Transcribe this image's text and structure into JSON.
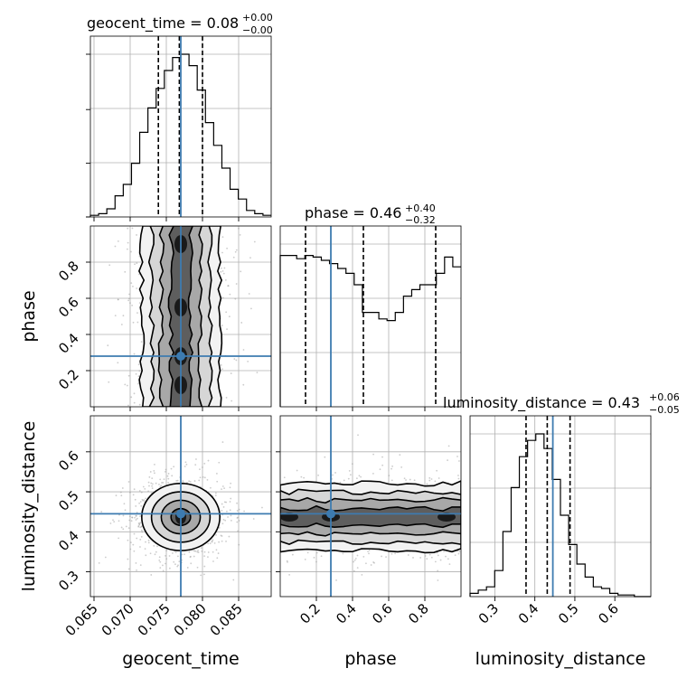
{
  "chart_data": {
    "type": "corner",
    "colors": {
      "truth": "#3d7bb0",
      "contour": "#000000",
      "scatter": "#a0a0a0"
    },
    "parameters": [
      {
        "name": "geocent_time",
        "axis_label": "geocent_time",
        "range": [
          0.0645,
          0.0895
        ],
        "ticks": [
          "0.065",
          "0.070",
          "0.075",
          "0.080",
          "0.085"
        ],
        "tick_values": [
          0.065,
          0.07,
          0.075,
          0.08,
          0.085
        ],
        "title_main": "geocent_time = 0.08",
        "title_sup": "+0.00",
        "title_sub": "−0.00",
        "truth": 0.077,
        "quantiles": [
          0.0739,
          0.0768,
          0.08
        ],
        "histogram": [
          0.01,
          0.02,
          0.05,
          0.13,
          0.2,
          0.33,
          0.52,
          0.67,
          0.79,
          0.9,
          0.98,
          1.0,
          0.93,
          0.78,
          0.58,
          0.44,
          0.3,
          0.17,
          0.11,
          0.04,
          0.02,
          0.01
        ]
      },
      {
        "name": "phase",
        "axis_label": "phase",
        "range": [
          0.0,
          1.0
        ],
        "ticks": [
          "0.2",
          "0.4",
          "0.6",
          "0.8"
        ],
        "tick_values": [
          0.2,
          0.4,
          0.6,
          0.8
        ],
        "title_main": "phase = 0.46",
        "title_sup": "+0.40",
        "title_sub": "−0.32",
        "truth": 0.28,
        "quantiles": [
          0.14,
          0.46,
          0.86
        ],
        "histogram": [
          0.93,
          0.93,
          0.91,
          0.93,
          0.92,
          0.9,
          0.88,
          0.85,
          0.82,
          0.75,
          0.58,
          0.58,
          0.54,
          0.53,
          0.58,
          0.68,
          0.72,
          0.75,
          0.75,
          0.82,
          0.92,
          0.86
        ]
      },
      {
        "name": "luminosity_distance",
        "axis_label": "luminosity_distance",
        "range": [
          0.238,
          0.69
        ],
        "ticks": [
          "0.3",
          "0.4",
          "0.5",
          "0.6"
        ],
        "tick_values": [
          0.3,
          0.4,
          0.5,
          0.6
        ],
        "title_main": "luminosity_distance = 0.43",
        "title_sup": "+0.06",
        "title_sub": "−0.05",
        "truth": 0.445,
        "quantiles": [
          0.378,
          0.431,
          0.488
        ],
        "histogram": [
          0.02,
          0.04,
          0.06,
          0.16,
          0.4,
          0.67,
          0.86,
          0.96,
          1.0,
          0.91,
          0.72,
          0.5,
          0.32,
          0.2,
          0.12,
          0.06,
          0.05,
          0.02,
          0.01,
          0.01,
          0.0,
          0.0
        ]
      }
    ],
    "panel_y_ticks": {
      "phase": [
        "0.2",
        "0.4",
        "0.6",
        "0.8"
      ],
      "luminosity_distance": [
        "0.3",
        "0.4",
        "0.5",
        "0.6"
      ]
    },
    "phase_y_range": [
      0.0,
      1.0
    ],
    "lum_y_range": [
      0.238,
      0.69
    ],
    "pair_densities": {
      "geocent_time__phase": {
        "x_center": 0.077,
        "x_sigma": 0.0027,
        "y_profile": "uniform",
        "y_truth": 0.28
      },
      "geocent_time__luminosity_distance": {
        "x_center": 0.077,
        "x_sigma": 0.0027,
        "y_center": 0.437,
        "y_sigma": 0.042
      },
      "phase__luminosity_distance": {
        "x_profile": "uniform",
        "y_center": 0.437,
        "y_sigma": 0.042
      }
    },
    "grid": true
  }
}
